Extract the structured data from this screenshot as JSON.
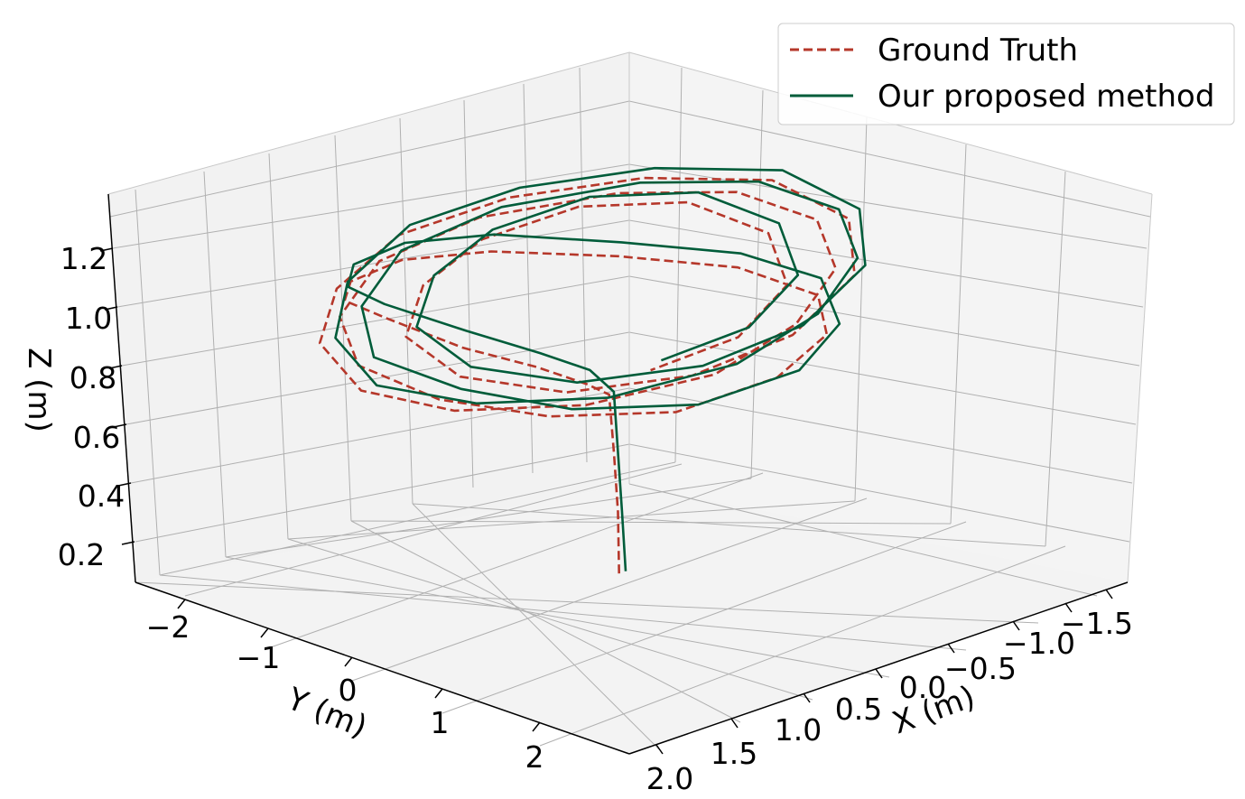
{
  "chart_data": {
    "type": "line",
    "projection": "3d",
    "xlabel": "X (m)",
    "ylabel": "Y (m)",
    "zlabel": "Z (m)",
    "x_ticks": [
      "2.0",
      "1.5",
      "1.0",
      "0.5",
      "0.0",
      "−0.5",
      "−1.0",
      "−1.5"
    ],
    "y_ticks": [
      "−2",
      "−1",
      "0",
      "1",
      "2"
    ],
    "z_ticks": [
      "0.2",
      "0.4",
      "0.6",
      "0.8",
      "1.0",
      "1.2"
    ],
    "xlim": [
      2.0,
      -1.8
    ],
    "ylim": [
      -2.4,
      2.8
    ],
    "zlim": [
      0.1,
      1.3
    ],
    "grid": true,
    "legend_position": "top-right",
    "series": [
      {
        "name": "Ground Truth",
        "color": "#b5372a",
        "style": "dashed",
        "points": [
          [
            0.05,
            0.0,
            0.1
          ],
          [
            0.04,
            0.02,
            0.3
          ],
          [
            0.06,
            0.05,
            0.5
          ],
          [
            0.1,
            0.1,
            0.7
          ],
          [
            0.4,
            0.3,
            0.8
          ],
          [
            0.9,
            0.5,
            0.95
          ],
          [
            1.3,
            0.3,
            1.05
          ],
          [
            1.5,
            -0.2,
            1.12
          ],
          [
            1.4,
            -0.8,
            1.1
          ],
          [
            1.0,
            -1.3,
            1.05
          ],
          [
            0.4,
            -1.6,
            1.0
          ],
          [
            -0.2,
            -1.5,
            0.95
          ],
          [
            -0.8,
            -1.0,
            0.9
          ],
          [
            -1.2,
            -0.3,
            0.88
          ],
          [
            -1.3,
            0.4,
            0.85
          ],
          [
            -1.0,
            0.9,
            0.82
          ],
          [
            -0.4,
            1.2,
            0.8
          ],
          [
            0.3,
            1.1,
            0.78
          ],
          [
            0.9,
            0.6,
            0.8
          ],
          [
            1.3,
            0.0,
            0.85
          ],
          [
            1.4,
            -0.7,
            0.9
          ],
          [
            1.1,
            -1.3,
            0.95
          ],
          [
            0.5,
            -1.7,
            1.0
          ],
          [
            -0.2,
            -1.6,
            1.05
          ],
          [
            -0.9,
            -1.1,
            1.08
          ],
          [
            -1.3,
            -0.4,
            1.1
          ],
          [
            -1.4,
            0.3,
            1.07
          ],
          [
            -1.1,
            0.9,
            1.02
          ],
          [
            -0.5,
            1.3,
            0.97
          ],
          [
            0.2,
            1.4,
            0.92
          ],
          [
            0.9,
            1.0,
            0.88
          ],
          [
            1.4,
            0.3,
            0.86
          ],
          [
            1.6,
            -0.4,
            0.88
          ],
          [
            1.4,
            -1.1,
            0.93
          ],
          [
            0.9,
            -1.6,
            0.98
          ],
          [
            0.2,
            -1.9,
            1.02
          ],
          [
            -0.5,
            -1.7,
            1.06
          ],
          [
            -1.1,
            -1.1,
            1.1
          ],
          [
            -1.5,
            -0.3,
            1.12
          ],
          [
            -1.5,
            0.5,
            1.08
          ],
          [
            -1.1,
            1.1,
            1.02
          ],
          [
            -0.4,
            1.4,
            0.96
          ],
          [
            0.3,
            1.3,
            0.92
          ],
          [
            0.9,
            0.8,
            0.9
          ],
          [
            1.2,
            0.1,
            0.92
          ],
          [
            1.1,
            -0.6,
            0.96
          ],
          [
            0.6,
            -1.1,
            1.0
          ],
          [
            0.0,
            -1.3,
            1.04
          ],
          [
            -0.6,
            -1.1,
            1.08
          ],
          [
            -1.0,
            -0.5,
            1.1
          ],
          [
            -1.1,
            0.2,
            1.06
          ],
          [
            -0.8,
            0.8,
            1.0
          ],
          [
            -0.2,
            1.1,
            0.95
          ],
          [
            0.4,
            1.0,
            0.92
          ]
        ]
      },
      {
        "name": "Our proposed method",
        "color": "#005c3a",
        "style": "solid",
        "points": [
          [
            0.0,
            0.0,
            0.1
          ],
          [
            0.01,
            0.02,
            0.3
          ],
          [
            0.03,
            0.05,
            0.5
          ],
          [
            0.05,
            0.08,
            0.7
          ],
          [
            0.3,
            0.2,
            0.82
          ],
          [
            0.8,
            0.4,
            0.97
          ],
          [
            1.2,
            0.2,
            1.08
          ],
          [
            1.45,
            -0.3,
            1.15
          ],
          [
            1.3,
            -0.9,
            1.12
          ],
          [
            0.9,
            -1.4,
            1.08
          ],
          [
            0.3,
            -1.7,
            1.03
          ],
          [
            -0.3,
            -1.6,
            0.98
          ],
          [
            -0.9,
            -1.1,
            0.92
          ],
          [
            -1.3,
            -0.4,
            0.9
          ],
          [
            -1.4,
            0.3,
            0.88
          ],
          [
            -1.1,
            0.9,
            0.84
          ],
          [
            -0.5,
            1.3,
            0.82
          ],
          [
            0.2,
            1.2,
            0.8
          ],
          [
            0.8,
            0.7,
            0.82
          ],
          [
            1.2,
            0.1,
            0.88
          ],
          [
            1.35,
            -0.6,
            0.93
          ],
          [
            1.0,
            -1.2,
            0.98
          ],
          [
            0.4,
            -1.6,
            1.03
          ],
          [
            -0.3,
            -1.5,
            1.08
          ],
          [
            -1.0,
            -1.0,
            1.11
          ],
          [
            -1.4,
            -0.3,
            1.13
          ],
          [
            -1.5,
            0.4,
            1.1
          ],
          [
            -1.2,
            1.0,
            1.05
          ],
          [
            -0.6,
            1.4,
            1.0
          ],
          [
            0.1,
            1.5,
            0.95
          ],
          [
            0.8,
            1.1,
            0.9
          ],
          [
            1.3,
            0.4,
            0.88
          ],
          [
            1.55,
            -0.3,
            0.9
          ],
          [
            1.35,
            -1.0,
            0.95
          ],
          [
            0.85,
            -1.55,
            1.0
          ],
          [
            0.15,
            -1.85,
            1.05
          ],
          [
            -0.55,
            -1.65,
            1.09
          ],
          [
            -1.15,
            -1.05,
            1.13
          ],
          [
            -1.55,
            -0.25,
            1.15
          ],
          [
            -1.55,
            0.55,
            1.11
          ],
          [
            -1.15,
            1.15,
            1.05
          ],
          [
            -0.45,
            1.45,
            0.99
          ],
          [
            0.25,
            1.35,
            0.95
          ],
          [
            0.85,
            0.85,
            0.93
          ],
          [
            1.15,
            0.15,
            0.95
          ],
          [
            1.05,
            -0.55,
            0.99
          ],
          [
            0.55,
            -1.05,
            1.03
          ],
          [
            -0.05,
            -1.25,
            1.07
          ],
          [
            -0.65,
            -1.05,
            1.11
          ],
          [
            -1.05,
            -0.45,
            1.13
          ],
          [
            -1.15,
            0.25,
            1.09
          ],
          [
            -0.85,
            0.85,
            1.03
          ],
          [
            -0.25,
            1.15,
            0.98
          ],
          [
            0.35,
            1.05,
            0.95
          ]
        ]
      }
    ]
  }
}
